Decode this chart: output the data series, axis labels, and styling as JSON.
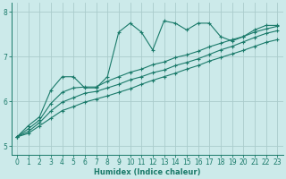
{
  "background_color": "#cceaea",
  "grid_color": "#aacccc",
  "line_color": "#1a7a6a",
  "xlabel": "Humidex (Indice chaleur)",
  "ylim": [
    4.8,
    8.2
  ],
  "xlim": [
    -0.5,
    23.5
  ],
  "yticks": [
    5,
    6,
    7,
    8
  ],
  "xticks": [
    0,
    1,
    2,
    3,
    4,
    5,
    6,
    7,
    8,
    9,
    10,
    11,
    12,
    13,
    14,
    15,
    16,
    17,
    18,
    19,
    20,
    21,
    22,
    23
  ],
  "series1_x": [
    0,
    1,
    2,
    3,
    4,
    5,
    6,
    7,
    8,
    9,
    10,
    11,
    12,
    13,
    14,
    15,
    16,
    17,
    18,
    19,
    20,
    21,
    22,
    23
  ],
  "series1_y": [
    5.2,
    5.45,
    5.65,
    6.25,
    6.55,
    6.55,
    6.3,
    6.3,
    6.55,
    7.55,
    7.75,
    7.55,
    7.15,
    7.8,
    7.75,
    7.6,
    7.75,
    7.75,
    7.45,
    7.35,
    7.45,
    7.6,
    7.7,
    7.7
  ],
  "series2_x": [
    0,
    1,
    2,
    3,
    4,
    5,
    6,
    7,
    8,
    9,
    10,
    11,
    12,
    13,
    14,
    15,
    16,
    17,
    18,
    19,
    20,
    21,
    22,
    23
  ],
  "series2_y": [
    5.2,
    5.38,
    5.58,
    5.95,
    6.2,
    6.3,
    6.32,
    6.32,
    6.45,
    6.55,
    6.65,
    6.72,
    6.82,
    6.88,
    6.98,
    7.04,
    7.12,
    7.22,
    7.3,
    7.38,
    7.45,
    7.55,
    7.62,
    7.68
  ],
  "series3_x": [
    0,
    1,
    2,
    3,
    4,
    5,
    6,
    7,
    8,
    9,
    10,
    11,
    12,
    13,
    14,
    15,
    16,
    17,
    18,
    19,
    20,
    21,
    22,
    23
  ],
  "series3_y": [
    5.2,
    5.32,
    5.52,
    5.78,
    5.98,
    6.08,
    6.18,
    6.22,
    6.3,
    6.38,
    6.48,
    6.55,
    6.64,
    6.7,
    6.8,
    6.87,
    6.95,
    7.05,
    7.15,
    7.23,
    7.33,
    7.43,
    7.52,
    7.58
  ],
  "series4_x": [
    0,
    1,
    2,
    3,
    4,
    5,
    6,
    7,
    8,
    9,
    10,
    11,
    12,
    13,
    14,
    15,
    16,
    17,
    18,
    19,
    20,
    21,
    22,
    23
  ],
  "series4_y": [
    5.2,
    5.28,
    5.45,
    5.62,
    5.79,
    5.88,
    5.98,
    6.05,
    6.12,
    6.2,
    6.28,
    6.38,
    6.47,
    6.55,
    6.63,
    6.72,
    6.8,
    6.9,
    6.98,
    7.06,
    7.14,
    7.23,
    7.32,
    7.38
  ]
}
